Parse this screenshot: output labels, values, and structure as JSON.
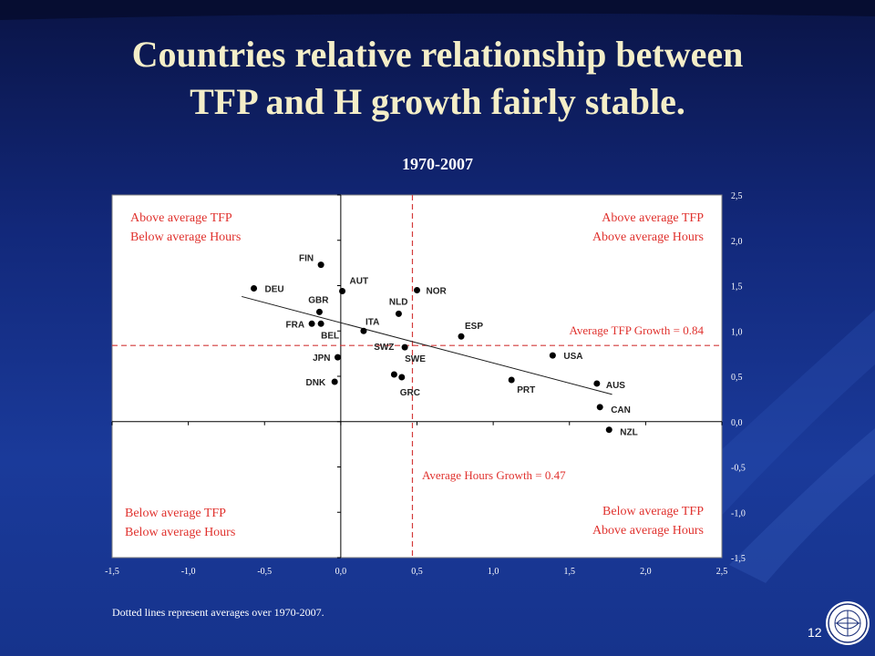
{
  "slide": {
    "title_line1": "Countries relative relationship between",
    "title_line2": "TFP and H growth fairly stable.",
    "page_number": "12",
    "footnote": "Dotted lines represent averages over 1970-2007.",
    "logo": "imf-seal-logo"
  },
  "colors": {
    "background": "#14307f",
    "title_text": "#f4eec8",
    "plot_area": "#ffffff",
    "quadrant_label": "#e0322e",
    "average_line": "#d33a3a",
    "points": "#000000"
  },
  "chart_data": {
    "type": "scatter",
    "title": "1970-2007",
    "xlim": [
      -1.5,
      2.5
    ],
    "ylim": [
      -1.5,
      2.5
    ],
    "x_ticks": [
      "-1,5",
      "-1,0",
      "-0,5",
      "0,0",
      "0,5",
      "1,0",
      "1,5",
      "2,0",
      "2,5"
    ],
    "y_ticks": [
      "2,5",
      "2,0",
      "1,5",
      "1,0",
      "0,5",
      "0,0",
      "-0,5",
      "-1,0",
      "-1,5"
    ],
    "grid": false,
    "y_axis_side": "right",
    "points": [
      {
        "label": "FIN",
        "x": -0.13,
        "y": 1.73
      },
      {
        "label": "DEU",
        "x": -0.57,
        "y": 1.47
      },
      {
        "label": "AUT",
        "x": 0.01,
        "y": 1.44
      },
      {
        "label": "NOR",
        "x": 0.5,
        "y": 1.45
      },
      {
        "label": "GBR",
        "x": -0.14,
        "y": 1.21
      },
      {
        "label": "NLD",
        "x": 0.38,
        "y": 1.19
      },
      {
        "label": "FRA",
        "x": -0.19,
        "y": 1.08
      },
      {
        "label": "BEL",
        "x": -0.13,
        "y": 1.08
      },
      {
        "label": "ITA",
        "x": 0.15,
        "y": 1.0
      },
      {
        "label": "ESP",
        "x": 0.79,
        "y": 0.94
      },
      {
        "label": "SWE",
        "x": 0.42,
        "y": 0.82
      },
      {
        "label": "USA",
        "x": 1.39,
        "y": 0.73
      },
      {
        "label": "JPN",
        "x": -0.02,
        "y": 0.71
      },
      {
        "label": "SWZ",
        "x": 0.35,
        "y": 0.52
      },
      {
        "label": "GRC",
        "x": 0.4,
        "y": 0.49
      },
      {
        "label": "DNK",
        "x": -0.04,
        "y": 0.44
      },
      {
        "label": "PRT",
        "x": 1.12,
        "y": 0.46
      },
      {
        "label": "AUS",
        "x": 1.68,
        "y": 0.42
      },
      {
        "label": "CAN",
        "x": 1.7,
        "y": 0.16
      },
      {
        "label": "NZL",
        "x": 1.76,
        "y": -0.09
      }
    ],
    "trendline": {
      "x_start": -0.65,
      "y_start": 1.38,
      "x_end": 1.78,
      "y_end": 0.3
    },
    "averages": {
      "tfp_value": 0.84,
      "tfp_label": "Average TFP Growth = 0.84",
      "hours_value": 0.47,
      "hours_label": "Average Hours Growth = 0.47"
    },
    "quadrants": {
      "top_left": [
        "Above average TFP",
        "Below average Hours"
      ],
      "top_right": [
        "Above average TFP",
        "Above average Hours"
      ],
      "bottom_left": [
        "Below average TFP",
        "Below average Hours"
      ],
      "bottom_right": [
        "Below average TFP",
        "Above average Hours"
      ]
    }
  }
}
